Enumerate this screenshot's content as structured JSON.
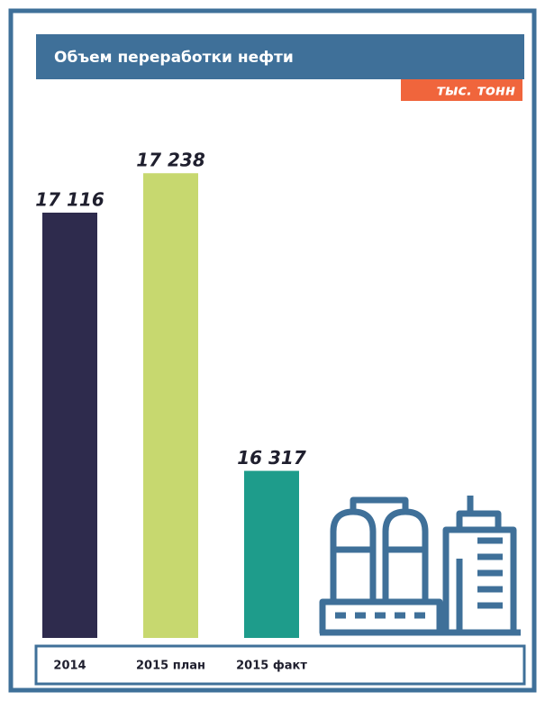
{
  "chart_data": {
    "type": "bar",
    "title": "Объем переработки нефти",
    "subtitle": "тыс. тонн",
    "categories": [
      "2014",
      "2015 план",
      "2015 факт"
    ],
    "values": [
      17116,
      17238,
      16317
    ],
    "value_labels": [
      "17 116",
      "17 238",
      "16 317"
    ],
    "colors": [
      "#2e2b4d",
      "#c7d86f",
      "#1e9c8b"
    ],
    "ylim": [
      15800,
      17300
    ]
  }
}
